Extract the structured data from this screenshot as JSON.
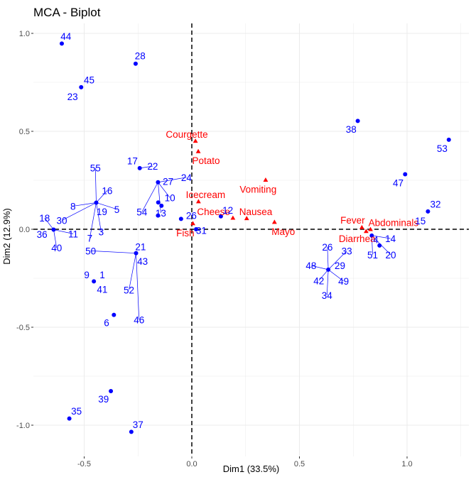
{
  "chart_data": {
    "type": "scatter",
    "title": "MCA - Biplot",
    "xlabel": "Dim1 (33.5%)",
    "ylabel": "Dim2 (12.9%)",
    "xlim": [
      -0.5,
      1.0
    ],
    "ylim": [
      -1.0,
      1.0
    ],
    "xticks": [
      -0.5,
      0.0,
      0.5,
      1.0
    ],
    "xtick_labels": [
      "-0.5",
      "0.0",
      "0.5",
      "1.0"
    ],
    "yticks": [
      -1.0,
      -0.5,
      0.0,
      0.5,
      1.0
    ],
    "ytick_labels": [
      "-1.0",
      "-0.5",
      "0.0",
      "0.5",
      "1.0"
    ],
    "grid": true,
    "reference_lines": {
      "x": 0,
      "y": 0,
      "style": "dashed"
    },
    "colors": {
      "individuals": "#0000ff",
      "variables": "#ff0000",
      "grid": "#ebebeb"
    },
    "individuals": [
      {
        "points": [
          [
            -0.604,
            0.948
          ]
        ],
        "labels": [
          {
            "text": "44",
            "x": -0.585,
            "y": 0.985
          }
        ]
      },
      {
        "points": [
          [
            -0.261,
            0.845
          ]
        ],
        "labels": [
          {
            "text": "28",
            "x": -0.24,
            "y": 0.885
          }
        ]
      },
      {
        "points": [
          [
            -0.514,
            0.725
          ]
        ],
        "labels": [
          {
            "text": "45",
            "x": -0.477,
            "y": 0.762
          },
          {
            "text": "23",
            "x": -0.554,
            "y": 0.678
          }
        ]
      },
      {
        "points": [
          [
            0.771,
            0.553
          ]
        ],
        "labels": [
          {
            "text": "38",
            "x": 0.74,
            "y": 0.51
          }
        ]
      },
      {
        "points": [
          [
            1.194,
            0.457
          ]
        ],
        "labels": [
          {
            "text": "53",
            "x": 1.163,
            "y": 0.413
          }
        ]
      },
      {
        "points": [
          [
            0.991,
            0.281
          ]
        ],
        "labels": [
          {
            "text": "47",
            "x": 0.959,
            "y": 0.238
          }
        ]
      },
      {
        "points": [
          [
            1.097,
            0.091
          ]
        ],
        "labels": [
          {
            "text": "32",
            "x": 1.132,
            "y": 0.128
          },
          {
            "text": "15",
            "x": 1.062,
            "y": 0.043
          }
        ]
      },
      {
        "points": [
          [
            -0.242,
            0.312
          ]
        ],
        "labels": [
          {
            "text": "17",
            "x": -0.276,
            "y": 0.35
          },
          {
            "text": "22",
            "x": -0.182,
            "y": 0.322
          }
        ]
      },
      {
        "points": [
          [
            -0.157,
            0.24
          ],
          [
            -0.156,
            0.137
          ],
          [
            -0.141,
            0.12
          ],
          [
            -0.157,
            0.07
          ]
        ],
        "labels": [
          {
            "text": "27",
            "x": -0.11,
            "y": 0.244
          },
          {
            "text": "24",
            "x": -0.025,
            "y": 0.265
          },
          {
            "text": "10",
            "x": -0.102,
            "y": 0.162
          },
          {
            "text": "54",
            "x": -0.232,
            "y": 0.088
          },
          {
            "text": "13",
            "x": -0.144,
            "y": 0.083
          }
        ]
      },
      {
        "points": [
          [
            -0.05,
            0.053
          ]
        ],
        "labels": [
          {
            "text": "26",
            "x": -0.002,
            "y": 0.071
          }
        ]
      },
      {
        "points": [
          [
            0.135,
            0.066
          ]
        ],
        "labels": [
          {
            "text": "12",
            "x": 0.167,
            "y": 0.098
          }
        ]
      },
      {
        "points": [
          [
            0.02,
            0.0
          ]
        ],
        "labels": [
          {
            "text": "31",
            "x": 0.044,
            "y": -0.005
          }
        ]
      },
      {
        "points": [
          [
            -0.444,
            0.136
          ]
        ],
        "labels": [
          {
            "text": "55",
            "x": -0.448,
            "y": 0.313
          },
          {
            "text": "16",
            "x": -0.393,
            "y": 0.198
          },
          {
            "text": "19",
            "x": -0.418,
            "y": 0.09
          },
          {
            "text": "5",
            "x": -0.348,
            "y": 0.102
          },
          {
            "text": "8",
            "x": -0.552,
            "y": 0.118
          },
          {
            "text": "30",
            "x": -0.604,
            "y": 0.045
          },
          {
            "text": "7",
            "x": -0.474,
            "y": -0.045
          },
          {
            "text": "3",
            "x": -0.421,
            "y": -0.013
          }
        ]
      },
      {
        "points": [
          [
            -0.642,
            -0.002
          ]
        ],
        "labels": [
          {
            "text": "18",
            "x": -0.684,
            "y": 0.058
          },
          {
            "text": "36",
            "x": -0.696,
            "y": -0.025
          },
          {
            "text": "11",
            "x": -0.551,
            "y": -0.023
          },
          {
            "text": "40",
            "x": -0.628,
            "y": -0.095
          }
        ]
      },
      {
        "points": [
          [
            -0.259,
            -0.122
          ]
        ],
        "labels": [
          {
            "text": "50",
            "x": -0.47,
            "y": -0.11
          },
          {
            "text": "21",
            "x": -0.238,
            "y": -0.088
          },
          {
            "text": "43",
            "x": -0.229,
            "y": -0.163
          },
          {
            "text": "52",
            "x": -0.292,
            "y": -0.31
          },
          {
            "text": "46",
            "x": -0.245,
            "y": -0.462
          }
        ]
      },
      {
        "points": [
          [
            -0.455,
            -0.266
          ]
        ],
        "labels": [
          {
            "text": "9",
            "x": -0.488,
            "y": -0.232
          },
          {
            "text": "1",
            "x": -0.416,
            "y": -0.232
          },
          {
            "text": "41",
            "x": -0.416,
            "y": -0.306
          }
        ]
      },
      {
        "points": [
          [
            -0.362,
            -0.437
          ]
        ],
        "labels": [
          {
            "text": "6",
            "x": -0.396,
            "y": -0.477
          }
        ]
      },
      {
        "points": [
          [
            0.634,
            -0.206
          ]
        ],
        "labels": [
          {
            "text": "26",
            "x": 0.63,
            "y": -0.09
          },
          {
            "text": "33",
            "x": 0.72,
            "y": -0.11
          },
          {
            "text": "48",
            "x": 0.554,
            "y": -0.185
          },
          {
            "text": "29",
            "x": 0.688,
            "y": -0.185
          },
          {
            "text": "42",
            "x": 0.59,
            "y": -0.262
          },
          {
            "text": "49",
            "x": 0.705,
            "y": -0.265
          },
          {
            "text": "34",
            "x": 0.628,
            "y": -0.337
          }
        ]
      },
      {
        "points": [
          [
            0.836,
            -0.032
          ],
          [
            0.872,
            -0.083
          ]
        ],
        "labels": [
          {
            "text": "4",
            "x": 0.855,
            "y": -0.053
          },
          {
            "text": "14",
            "x": 0.923,
            "y": -0.047
          },
          {
            "text": "51",
            "x": 0.84,
            "y": -0.13
          },
          {
            "text": "20",
            "x": 0.924,
            "y": -0.13
          }
        ]
      },
      {
        "points": [
          [
            -0.376,
            -0.826
          ]
        ],
        "labels": [
          {
            "text": "39",
            "x": -0.41,
            "y": -0.866
          }
        ]
      },
      {
        "points": [
          [
            -0.569,
            -0.966
          ]
        ],
        "labels": [
          {
            "text": "35",
            "x": -0.536,
            "y": -0.928
          }
        ]
      },
      {
        "points": [
          [
            -0.281,
            -1.034
          ]
        ],
        "labels": [
          {
            "text": "37",
            "x": -0.25,
            "y": -0.997
          }
        ]
      }
    ],
    "variables": [
      {
        "text": "Courgette",
        "x": 0.017,
        "y": 0.451,
        "lx": -0.023,
        "ly": 0.485
      },
      {
        "text": "Potato",
        "x": 0.03,
        "y": 0.398,
        "lx": 0.066,
        "ly": 0.352
      },
      {
        "text": "Vomiting",
        "x": 0.343,
        "y": 0.252,
        "lx": 0.308,
        "ly": 0.205
      },
      {
        "text": "Icecream",
        "x": 0.031,
        "y": 0.142,
        "lx": 0.064,
        "ly": 0.178
      },
      {
        "text": "Cheese",
        "x": 0.191,
        "y": 0.058,
        "lx": 0.101,
        "ly": 0.09
      },
      {
        "text": "Nausea",
        "x": 0.255,
        "y": 0.056,
        "lx": 0.297,
        "ly": 0.09
      },
      {
        "text": "Mayo",
        "x": 0.384,
        "y": 0.037,
        "lx": 0.425,
        "ly": -0.01
      },
      {
        "text": "Fish",
        "x": 0.005,
        "y": 0.03,
        "lx": -0.03,
        "ly": -0.018
      },
      {
        "text": "Fever",
        "x": 0.79,
        "y": 0.01,
        "lx": 0.747,
        "ly": 0.048
      },
      {
        "text": "Abdominals",
        "x": 0.83,
        "y": 0.0,
        "lx": 0.937,
        "ly": 0.035
      },
      {
        "text": "Diarrhea",
        "x": 0.81,
        "y": -0.01,
        "lx": 0.768,
        "ly": -0.047
      }
    ]
  }
}
